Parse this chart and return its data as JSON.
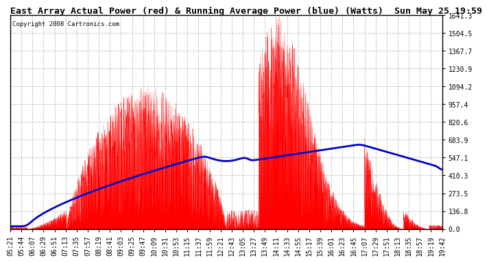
{
  "title": "East Array Actual Power (red) & Running Average Power (blue) (Watts)  Sun May 25 19:59",
  "copyright": "Copyright 2008 Cartronics.com",
  "ylabel_values": [
    0.0,
    136.8,
    273.5,
    410.3,
    547.1,
    683.9,
    820.6,
    957.4,
    1094.2,
    1230.9,
    1367.7,
    1504.5,
    1641.3
  ],
  "ymax": 1641.3,
  "ymin": 0.0,
  "x_labels": [
    "05:21",
    "05:44",
    "06:07",
    "06:29",
    "06:51",
    "07:13",
    "07:35",
    "07:57",
    "08:19",
    "08:41",
    "09:03",
    "09:25",
    "09:47",
    "10:09",
    "10:31",
    "10:53",
    "11:15",
    "11:37",
    "11:59",
    "12:21",
    "12:43",
    "13:05",
    "13:27",
    "13:49",
    "14:11",
    "14:33",
    "14:55",
    "15:17",
    "15:39",
    "16:01",
    "16:23",
    "16:45",
    "17:07",
    "17:29",
    "17:51",
    "18:13",
    "18:35",
    "18:57",
    "19:19",
    "19:42"
  ],
  "background_color": "#ffffff",
  "plot_bg_color": "#ffffff",
  "grid_color": "#bbbbbb",
  "actual_color": "#ff0000",
  "average_color": "#0000cc",
  "title_fontsize": 9.5,
  "tick_fontsize": 7,
  "copyright_fontsize": 6.5
}
